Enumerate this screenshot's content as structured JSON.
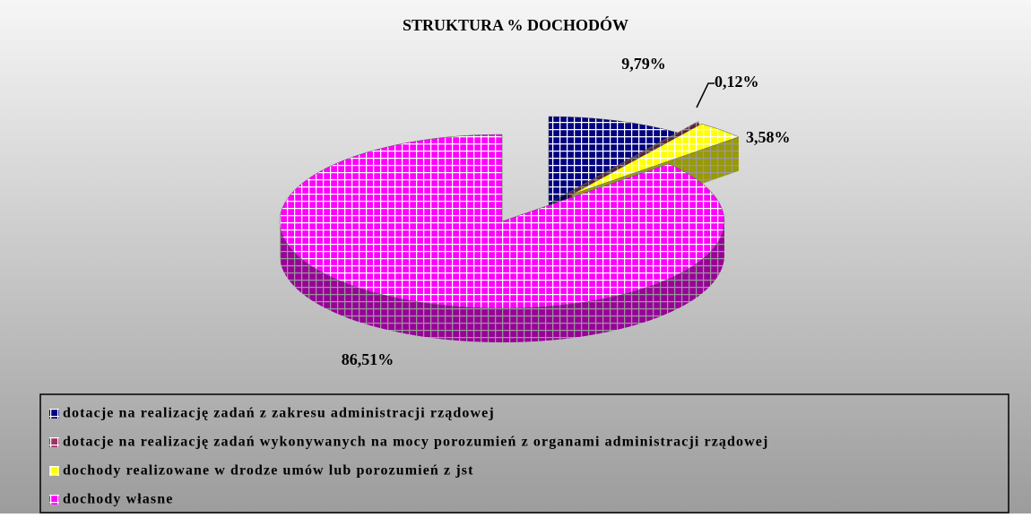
{
  "chart_data": {
    "type": "pie3d",
    "title": "STRUKTURA % DOCHODÓW",
    "categories": [
      "dotacje na realizację zadań z zakresu administracji rządowej",
      "dotacje na realizację zadań wykonywanych na mocy porozumień z organami administracji rządowej",
      "dochody realizowane w drodze umów lub porozumień z jst",
      "dochody własne"
    ],
    "values": [
      9.79,
      0.12,
      3.58,
      86.51
    ],
    "value_labels": [
      "9,79%",
      "0,12%",
      "3,58%",
      "86,51%"
    ],
    "colors": [
      "#000080",
      "#993366",
      "#ffff00",
      "#ff00ff"
    ],
    "legend": "bottom"
  }
}
